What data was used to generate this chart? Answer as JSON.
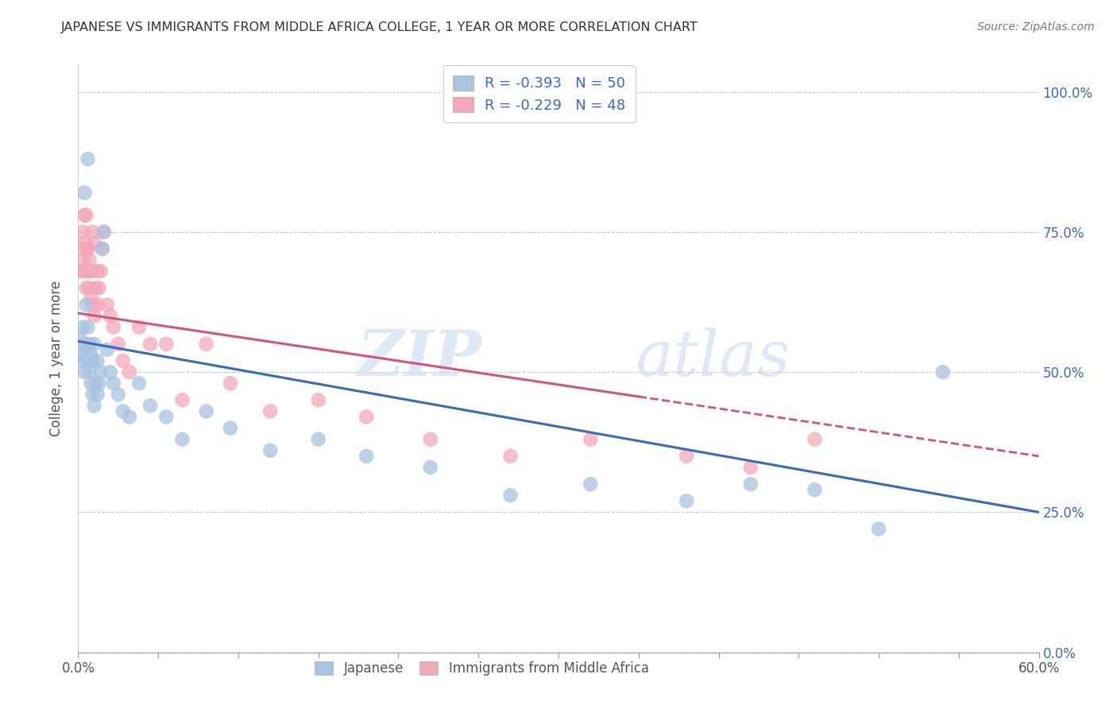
{
  "title": "JAPANESE VS IMMIGRANTS FROM MIDDLE AFRICA COLLEGE, 1 YEAR OR MORE CORRELATION CHART",
  "source": "Source: ZipAtlas.com",
  "ylabel": "College, 1 year or more",
  "ylabel_ticks": [
    "0.0%",
    "25.0%",
    "50.0%",
    "75.0%",
    "100.0%"
  ],
  "ylabel_vals": [
    0.0,
    0.25,
    0.5,
    0.75,
    1.0
  ],
  "xlim": [
    0.0,
    0.6
  ],
  "ylim": [
    0.0,
    1.05
  ],
  "legend_r1": "R = -0.393",
  "legend_n1": "N = 50",
  "legend_r2": "R = -0.229",
  "legend_n2": "N = 48",
  "blue_color": "#a8c4e0",
  "pink_color": "#f4a7b9",
  "line_blue": "#3a6abf",
  "line_pink": "#d4547a",
  "watermark_zip": "ZIP",
  "watermark_atlas": "atlas",
  "japanese_x": [
    0.001,
    0.002,
    0.003,
    0.003,
    0.004,
    0.004,
    0.005,
    0.005,
    0.006,
    0.006,
    0.007,
    0.007,
    0.008,
    0.008,
    0.009,
    0.009,
    0.01,
    0.01,
    0.011,
    0.012,
    0.012,
    0.013,
    0.014,
    0.015,
    0.016,
    0.018,
    0.02,
    0.022,
    0.025,
    0.028,
    0.032,
    0.038,
    0.045,
    0.055,
    0.065,
    0.08,
    0.095,
    0.12,
    0.15,
    0.18,
    0.22,
    0.27,
    0.32,
    0.38,
    0.42,
    0.46,
    0.5,
    0.54,
    0.004,
    0.006
  ],
  "japanese_y": [
    0.56,
    0.53,
    0.52,
    0.58,
    0.55,
    0.5,
    0.62,
    0.54,
    0.58,
    0.52,
    0.55,
    0.5,
    0.53,
    0.48,
    0.52,
    0.46,
    0.55,
    0.44,
    0.48,
    0.52,
    0.46,
    0.48,
    0.5,
    0.72,
    0.75,
    0.54,
    0.5,
    0.48,
    0.46,
    0.43,
    0.42,
    0.48,
    0.44,
    0.42,
    0.38,
    0.43,
    0.4,
    0.36,
    0.38,
    0.35,
    0.33,
    0.28,
    0.3,
    0.27,
    0.3,
    0.29,
    0.22,
    0.5,
    0.82,
    0.88
  ],
  "immigrants_x": [
    0.001,
    0.002,
    0.003,
    0.003,
    0.004,
    0.004,
    0.005,
    0.005,
    0.006,
    0.006,
    0.007,
    0.007,
    0.008,
    0.008,
    0.009,
    0.009,
    0.01,
    0.01,
    0.011,
    0.012,
    0.012,
    0.013,
    0.014,
    0.015,
    0.016,
    0.018,
    0.02,
    0.022,
    0.025,
    0.028,
    0.032,
    0.038,
    0.045,
    0.055,
    0.065,
    0.08,
    0.095,
    0.12,
    0.15,
    0.18,
    0.22,
    0.27,
    0.32,
    0.38,
    0.42,
    0.46,
    0.004,
    0.006
  ],
  "immigrants_y": [
    0.68,
    0.72,
    0.75,
    0.7,
    0.73,
    0.68,
    0.78,
    0.65,
    0.72,
    0.68,
    0.7,
    0.65,
    0.68,
    0.63,
    0.75,
    0.62,
    0.73,
    0.6,
    0.65,
    0.68,
    0.62,
    0.65,
    0.68,
    0.72,
    0.75,
    0.62,
    0.6,
    0.58,
    0.55,
    0.52,
    0.5,
    0.58,
    0.55,
    0.55,
    0.45,
    0.55,
    0.48,
    0.43,
    0.45,
    0.42,
    0.38,
    0.35,
    0.38,
    0.35,
    0.33,
    0.38,
    0.78,
    0.72
  ]
}
